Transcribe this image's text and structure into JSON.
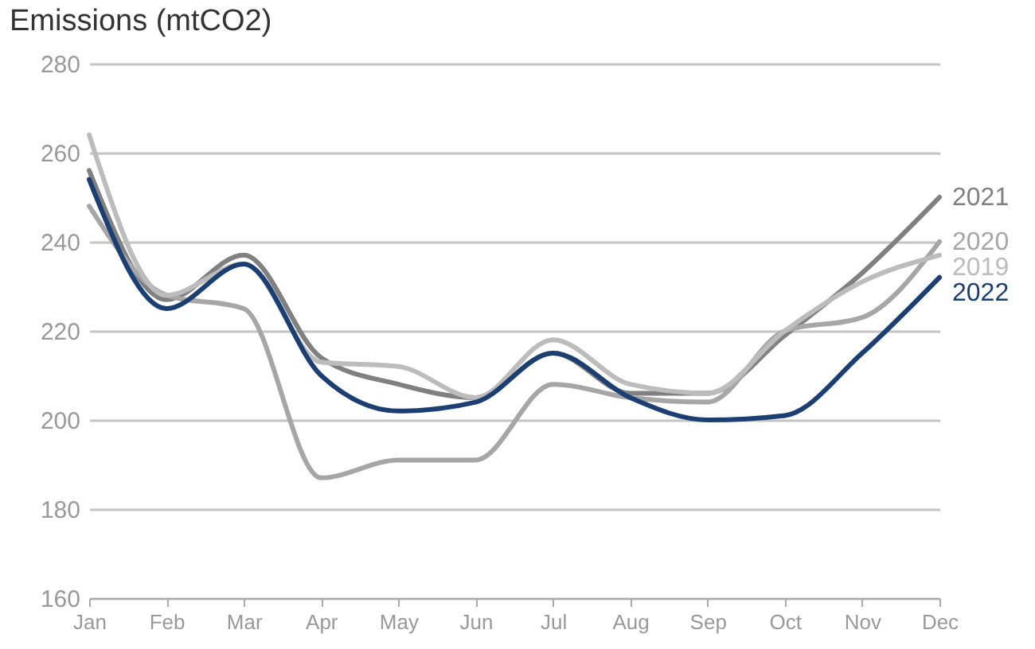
{
  "chart_data": {
    "type": "line",
    "title": "Emissions (mtCO2)",
    "categories": [
      "Jan",
      "Feb",
      "Mar",
      "Apr",
      "May",
      "Jun",
      "Jul",
      "Aug",
      "Sep",
      "Oct",
      "Nov",
      "Dec"
    ],
    "series": [
      {
        "name": "2021",
        "color": "#808080",
        "values": [
          256,
          227,
          237,
          214,
          208,
          205,
          215,
          206,
          206,
          219,
          233,
          250
        ]
      },
      {
        "name": "2020",
        "color": "#a6a6a6",
        "values": [
          248,
          228,
          225,
          187,
          191,
          191,
          208,
          205,
          204,
          220,
          223,
          240
        ]
      },
      {
        "name": "2019",
        "color": "#bcbcbc",
        "values": [
          264,
          228,
          235,
          213,
          212,
          205,
          218,
          208,
          206,
          220,
          231,
          237
        ]
      },
      {
        "name": "2022",
        "color": "#1c3f73",
        "values": [
          254,
          225,
          235,
          210,
          202,
          204,
          215,
          205,
          200,
          201,
          215,
          232
        ]
      }
    ],
    "ylim": [
      160,
      280
    ],
    "yticks": [
      160,
      180,
      200,
      220,
      240,
      260,
      280
    ],
    "grid": "y",
    "legend": false
  }
}
